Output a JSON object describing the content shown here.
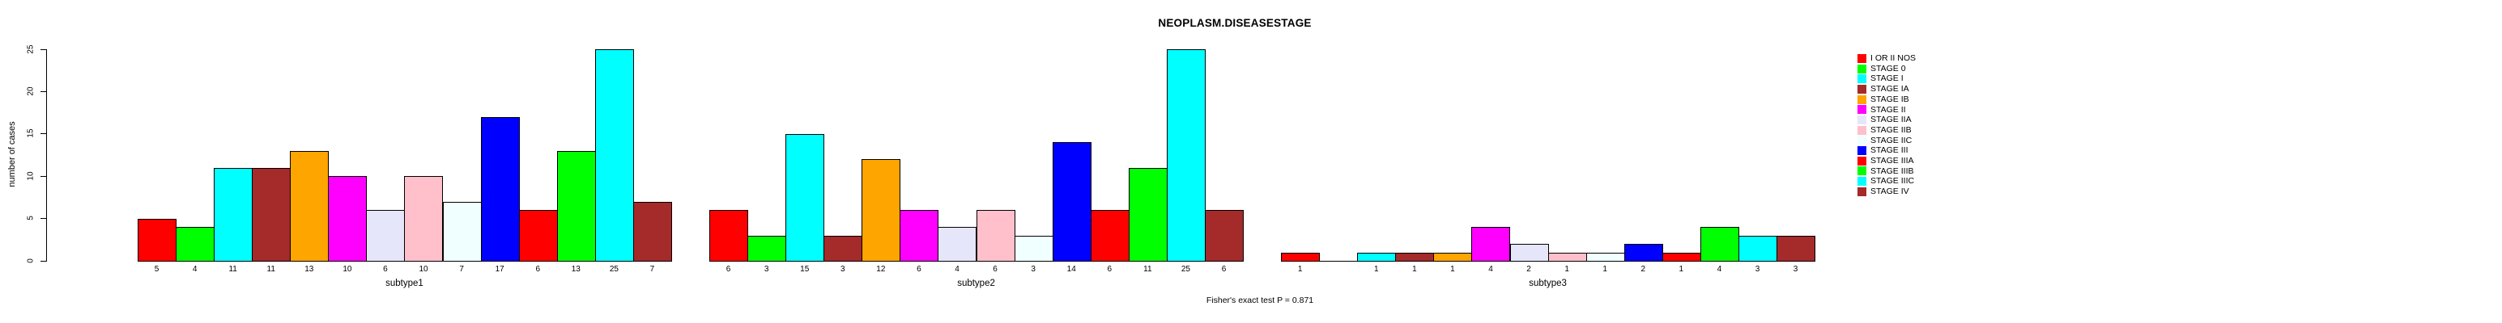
{
  "chart_data": {
    "type": "bar",
    "title": "NEOPLASM.DISEASESTAGE",
    "ylabel": "number of cases",
    "xlabel": "",
    "ylim": [
      0,
      25
    ],
    "yticks": [
      0,
      5,
      10,
      15,
      20,
      25
    ],
    "grid": false,
    "legend_position": "right",
    "annotation": "Fisher's exact test P = 0.871",
    "categories": [
      "I OR II NOS",
      "STAGE 0",
      "STAGE I",
      "STAGE IA",
      "STAGE IB",
      "STAGE II",
      "STAGE IIA",
      "STAGE IIB",
      "STAGE IIC",
      "STAGE III",
      "STAGE IIIA",
      "STAGE IIIB",
      "STAGE IIIC",
      "STAGE IV"
    ],
    "palette": [
      "#FF0000",
      "#00FF00",
      "#00FFFF",
      "#A52A2A",
      "#FFA500",
      "#FF00FF",
      "#E6E6FA",
      "#FFC0CB",
      "#F0FFFF",
      "#0000FF",
      "#FF0000",
      "#00FF00",
      "#00FFFF",
      "#A52A2A"
    ],
    "legend": [
      {
        "label": "I OR II NOS",
        "color": "#FF0000"
      },
      {
        "label": "STAGE 0",
        "color": "#00FF00"
      },
      {
        "label": "STAGE I",
        "color": "#00FFFF"
      },
      {
        "label": "STAGE IA",
        "color": "#A52A2A"
      },
      {
        "label": "STAGE IB",
        "color": "#FFA500"
      },
      {
        "label": "STAGE II",
        "color": "#FF00FF"
      },
      {
        "label": "STAGE IIA",
        "color": "#E6E6FA"
      },
      {
        "label": "STAGE IIB",
        "color": "#FFC0CB"
      },
      {
        "label": "STAGE IIC",
        "color": "#F0FFFF"
      },
      {
        "label": "STAGE III",
        "color": "#0000FF"
      },
      {
        "label": "STAGE IIIA",
        "color": "#FF0000"
      },
      {
        "label": "STAGE IIIB",
        "color": "#00FF00"
      },
      {
        "label": "STAGE IIIC",
        "color": "#00FFFF"
      },
      {
        "label": "STAGE IV",
        "color": "#A52A2A"
      }
    ],
    "groups": [
      {
        "label": "subtype1",
        "values": [
          5,
          4,
          11,
          11,
          13,
          10,
          6,
          10,
          7,
          17,
          6,
          13,
          25,
          7
        ]
      },
      {
        "label": "subtype2",
        "values": [
          6,
          3,
          15,
          3,
          12,
          6,
          4,
          6,
          3,
          14,
          6,
          11,
          25,
          6
        ]
      },
      {
        "label": "subtype3",
        "values": [
          1,
          0,
          1,
          1,
          1,
          4,
          2,
          1,
          1,
          2,
          1,
          4,
          3,
          3
        ]
      }
    ],
    "zero_value_bars_unlabeled": true
  }
}
